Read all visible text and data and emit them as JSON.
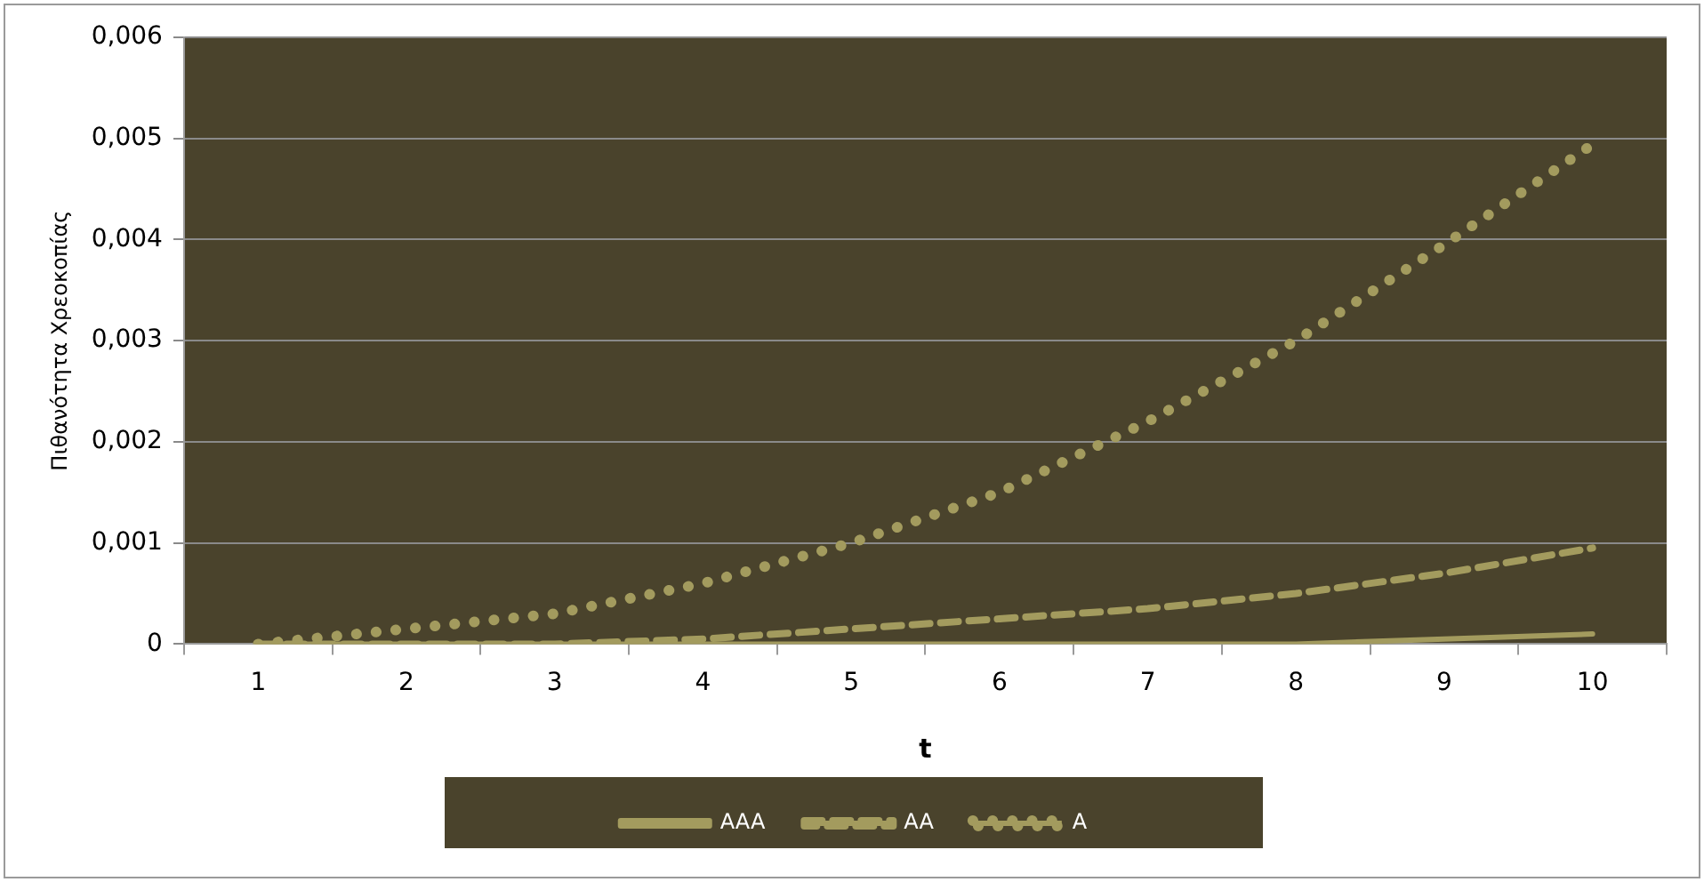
{
  "chart_data": {
    "type": "line",
    "xlabel": "t",
    "ylabel": "Πιθανότητα Χρεοκοπίας",
    "categories": [
      "1",
      "2",
      "3",
      "4",
      "5",
      "6",
      "7",
      "8",
      "9",
      "10"
    ],
    "series": [
      {
        "name": "AAA",
        "color": "#a39b5e",
        "line_style": "solid",
        "values": [
          0,
          0,
          0,
          0,
          0,
          0,
          0,
          0,
          5e-05,
          0.0001
        ]
      },
      {
        "name": "AA",
        "color": "#a39b5e",
        "line_style": "dashed",
        "values": [
          0,
          0,
          0,
          5e-05,
          0.00015,
          0.00025,
          0.00035,
          0.0005,
          0.0007,
          0.00095
        ]
      },
      {
        "name": "A",
        "color": "#a39b5e",
        "line_style": "dotted",
        "values": [
          0,
          0.00015,
          0.0003,
          0.0006,
          0.001,
          0.0015,
          0.0022,
          0.003,
          0.00395,
          0.00494
        ]
      }
    ],
    "ylim": [
      0,
      0.006
    ],
    "yticks": [
      {
        "value": 0,
        "label": "0"
      },
      {
        "value": 0.001,
        "label": "0,001"
      },
      {
        "value": 0.002,
        "label": "0,002"
      },
      {
        "value": 0.003,
        "label": "0,003"
      },
      {
        "value": 0.004,
        "label": "0,004"
      },
      {
        "value": 0.005,
        "label": "0,005"
      },
      {
        "value": 0.006,
        "label": "0,006"
      }
    ],
    "grid": "y",
    "legend": "bottom",
    "marker": "none"
  }
}
